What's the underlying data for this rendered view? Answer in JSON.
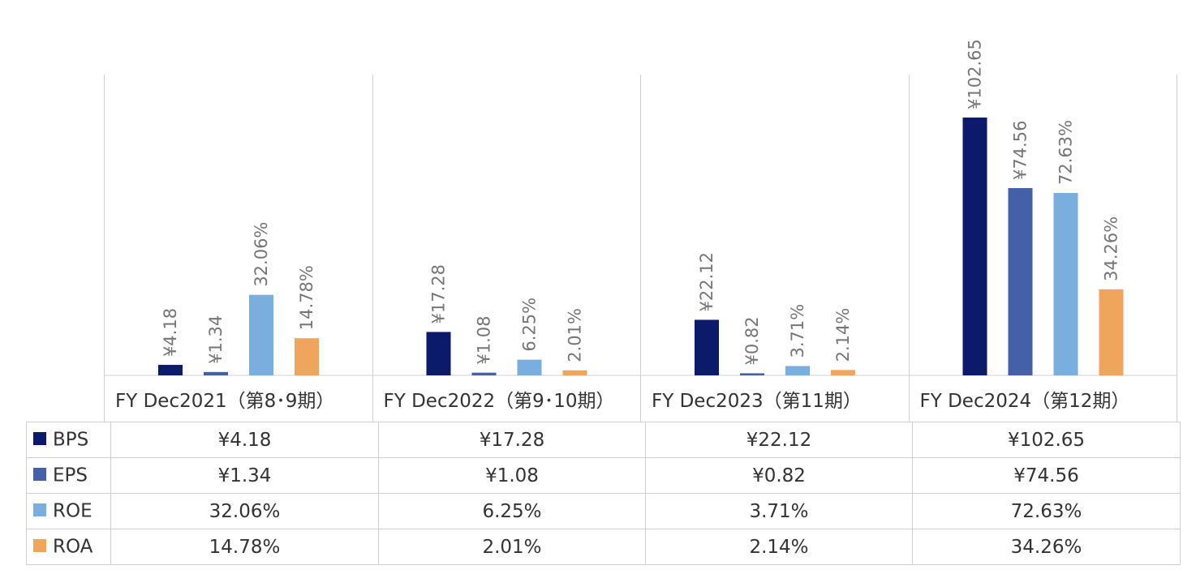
{
  "chart_data": {
    "type": "bar",
    "categories": [
      "FY Dec2021（第8･9期）",
      "FY Dec2022（第9･10期）",
      "FY Dec2023（第11期）",
      "FY Dec2024（第12期）"
    ],
    "series": [
      {
        "name": "BPS",
        "color": "#0b1a6b",
        "values": [
          4.18,
          17.28,
          22.12,
          102.65
        ],
        "labels": [
          "¥4.18",
          "¥17.28",
          "¥22.12",
          "¥102.65"
        ]
      },
      {
        "name": "EPS",
        "color": "#4360a8",
        "values": [
          1.34,
          1.08,
          0.82,
          74.56
        ],
        "labels": [
          "¥1.34",
          "¥1.08",
          "¥0.82",
          "¥74.56"
        ]
      },
      {
        "name": "ROE",
        "color": "#7aaede",
        "values": [
          32.06,
          6.25,
          3.71,
          72.63
        ],
        "labels": [
          "32.06%",
          "6.25%",
          "3.71%",
          "72.63%"
        ]
      },
      {
        "name": "ROA",
        "color": "#f0a55c",
        "values": [
          14.78,
          2.01,
          2.14,
          34.26
        ],
        "labels": [
          "14.78%",
          "2.01%",
          "2.14%",
          "34.26%"
        ]
      }
    ],
    "ylim": [
      0,
      100000
    ],
    "grid": false,
    "legend": "data-table"
  }
}
